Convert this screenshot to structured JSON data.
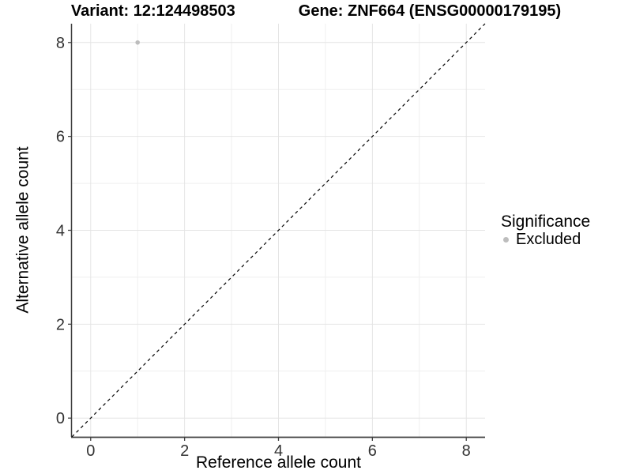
{
  "chart_data": {
    "type": "scatter",
    "title_left": "Variant: 12:124498503",
    "title_right": "Gene: ZNF664 (ENSG00000179195)",
    "xlabel": "Reference allele count",
    "ylabel": "Alternative allele count",
    "xlim": [
      -0.4,
      8.4
    ],
    "ylim": [
      -0.4,
      8.4
    ],
    "x_ticks": [
      0,
      2,
      4,
      6,
      8
    ],
    "y_ticks": [
      0,
      2,
      4,
      6,
      8
    ],
    "x_minor_ticks": [
      1,
      3,
      5,
      7
    ],
    "y_minor_ticks": [
      1,
      3,
      5,
      7
    ],
    "grid": "major+minor",
    "legend_position": "right",
    "identity_line": {
      "slope": 1,
      "intercept": 0,
      "style": "dashed",
      "color": "#000000"
    },
    "series": [
      {
        "name": "Excluded",
        "color": "#bdbdbd",
        "marker": "circle",
        "points": [
          {
            "x": 1,
            "y": 8
          }
        ]
      }
    ],
    "legend": {
      "title": "Significance",
      "items": [
        {
          "label": "Excluded",
          "color": "#bdbdbd",
          "marker": "circle"
        }
      ]
    }
  },
  "colors": {
    "background": "#ffffff",
    "grid_major": "#e4e4e4",
    "grid_minor": "#efefef",
    "axis_line": "#3f3f3f",
    "tick_mark": "#3f3f3f",
    "tick_label": "#333333"
  }
}
